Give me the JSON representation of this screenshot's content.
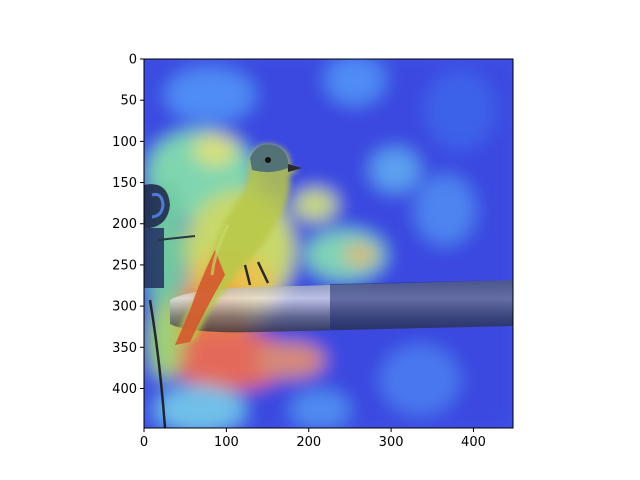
{
  "figure": {
    "image_description_icon": "bird-on-pipe-heatmap-icon",
    "colormap": "jet",
    "x_axis": {
      "ticks": [
        "0",
        "100",
        "200",
        "300",
        "400"
      ],
      "range": [
        0,
        448
      ]
    },
    "y_axis": {
      "ticks": [
        "0",
        "50",
        "100",
        "150",
        "200",
        "250",
        "300",
        "350",
        "400"
      ],
      "range": [
        0,
        448
      ]
    }
  }
}
